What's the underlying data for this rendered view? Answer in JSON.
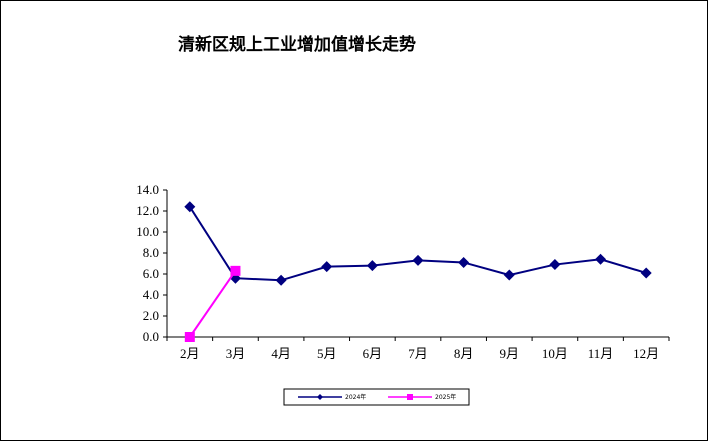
{
  "chart_data": {
    "type": "line",
    "title": "清新区规上工业增加值增长走势",
    "categories": [
      "2月",
      "3月",
      "4月",
      "5月",
      "6月",
      "7月",
      "8月",
      "9月",
      "10月",
      "11月",
      "12月"
    ],
    "series": [
      {
        "name": "2024年",
        "color": "#000080",
        "marker": "diamond",
        "values": [
          12.4,
          5.6,
          5.4,
          6.7,
          6.8,
          7.3,
          7.1,
          5.9,
          6.9,
          7.4,
          6.1
        ]
      },
      {
        "name": "2025年",
        "color": "#ff00ff",
        "marker": "square",
        "values": [
          0.0,
          6.3,
          null,
          null,
          null,
          null,
          null,
          null,
          null,
          null,
          null
        ]
      }
    ],
    "yticks": [
      "0.0",
      "2.0",
      "4.0",
      "6.0",
      "8.0",
      "10.0",
      "12.0",
      "14.0"
    ],
    "ylim": [
      0,
      14
    ],
    "grid": false,
    "legend_position": "bottom"
  }
}
